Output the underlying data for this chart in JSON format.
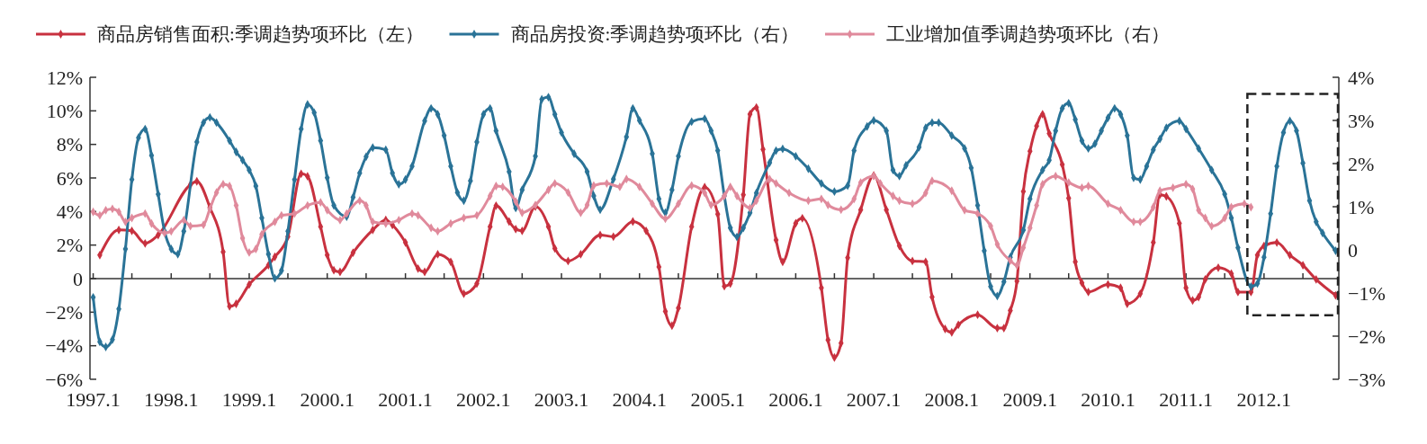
{
  "chart_data": {
    "type": "line",
    "legend": "top",
    "marker": "diamond",
    "xlim": [
      "1996-12-17",
      "2012-12-16"
    ],
    "xticks": [
      {
        "value": "1997-01",
        "label": "1997.1"
      },
      {
        "value": "1997-07",
        "label": null
      },
      {
        "value": "1998-01",
        "label": "1998.1"
      },
      {
        "value": "1998-07",
        "label": null
      },
      {
        "value": "1999-01",
        "label": "1999.1"
      },
      {
        "value": "1999-07",
        "label": null
      },
      {
        "value": "2000-01",
        "label": "2000.1"
      },
      {
        "value": "2000-07",
        "label": null
      },
      {
        "value": "2001-01",
        "label": "2001.1"
      },
      {
        "value": "2001-07",
        "label": null
      },
      {
        "value": "2002-01",
        "label": "2002.1"
      },
      {
        "value": "2002-07",
        "label": null
      },
      {
        "value": "2003-01",
        "label": "2003.1"
      },
      {
        "value": "2003-07",
        "label": null
      },
      {
        "value": "2004-01",
        "label": "2004.1"
      },
      {
        "value": "2004-07",
        "label": null
      },
      {
        "value": "2005-01",
        "label": "2005.1"
      },
      {
        "value": "2005-07",
        "label": null
      },
      {
        "value": "2006-01",
        "label": "2006.1"
      },
      {
        "value": "2006-07",
        "label": null
      },
      {
        "value": "2007-01",
        "label": "2007.1"
      },
      {
        "value": "2007-07",
        "label": null
      },
      {
        "value": "2008-01",
        "label": "2008.1"
      },
      {
        "value": "2008-07",
        "label": null
      },
      {
        "value": "2009-01",
        "label": "2009.1"
      },
      {
        "value": "2009-07",
        "label": null
      },
      {
        "value": "2010-01",
        "label": "2010.1"
      },
      {
        "value": "2010-07",
        "label": null
      },
      {
        "value": "2011-01",
        "label": "2011.1"
      },
      {
        "value": "2011-07",
        "label": null
      },
      {
        "value": "2012-01",
        "label": "2012.1"
      },
      {
        "value": "2012-07",
        "label": null
      }
    ],
    "ylim": [
      -6,
      12
    ],
    "yticks": [
      {
        "value": -6,
        "label": "−6%"
      },
      {
        "value": -4,
        "label": "−4%"
      },
      {
        "value": -2,
        "label": "−2%"
      },
      0,
      {
        "value": 2,
        "label": "2%"
      },
      {
        "value": 4,
        "label": "4%"
      },
      {
        "value": 6,
        "label": "6%"
      },
      {
        "value": 8,
        "label": "8%"
      },
      {
        "value": 10,
        "label": "10%"
      },
      {
        "value": 12,
        "label": "12%"
      }
    ],
    "y2lim": [
      -3,
      4
    ],
    "y2ticks": [
      {
        "value": -3,
        "label": "−3%"
      },
      {
        "value": -2,
        "label": "−2%"
      },
      {
        "value": -1,
        "label": "−1%"
      },
      0,
      {
        "value": 1,
        "label": "1%"
      },
      {
        "value": 2,
        "label": "2%"
      },
      {
        "value": 3,
        "label": "3%"
      },
      {
        "value": 4,
        "label": "4%"
      }
    ],
    "series": [
      {
        "name": "商品房销售面积:季调趋势项环比（左）",
        "color": "#c8313f",
        "x": [
          "1997-02",
          "1997-05",
          "1997-07",
          "1997-09",
          "1997-11",
          "1998-04",
          "1998-05",
          "1998-07",
          "1998-09",
          "1998-10",
          "1998-11",
          "1999-01",
          "1999-04",
          "1999-05",
          "1999-07",
          "1999-09",
          "1999-10",
          "1999-12",
          "2000-01",
          "2000-02",
          "2000-03",
          "2000-05",
          "2000-08",
          "2000-10",
          "2000-11",
          "2001-01",
          "2001-03",
          "2001-04",
          "2001-06",
          "2001-08",
          "2001-10",
          "2001-12",
          "2002-02",
          "2002-03",
          "2002-05",
          "2002-06",
          "2002-07",
          "2002-09",
          "2002-11",
          "2002-12",
          "2003-02",
          "2003-04",
          "2003-07",
          "2003-09",
          "2003-12",
          "2004-02",
          "2004-04",
          "2004-05",
          "2004-06",
          "2004-07",
          "2004-09",
          "2004-11",
          "2005-01",
          "2005-02",
          "2005-03",
          "2005-05",
          "2005-06",
          "2005-07",
          "2005-08",
          "2005-10",
          "2005-11",
          "2006-01",
          "2006-02",
          "2006-05",
          "2006-06",
          "2006-07",
          "2006-08",
          "2006-09",
          "2006-11",
          "2007-01",
          "2007-03",
          "2007-05",
          "2007-07",
          "2007-09",
          "2007-10",
          "2007-12",
          "2008-01",
          "2008-02",
          "2008-05",
          "2008-08",
          "2008-09",
          "2008-10",
          "2008-11",
          "2008-12",
          "2009-01",
          "2009-02",
          "2009-03",
          "2009-04",
          "2009-06",
          "2009-07",
          "2009-08",
          "2009-09",
          "2009-10",
          "2010-01",
          "2010-03",
          "2010-04",
          "2010-06",
          "2010-08",
          "2010-09",
          "2010-10",
          "2010-12",
          "2011-01",
          "2011-02",
          "2011-03",
          "2011-04",
          "2011-06",
          "2011-08",
          "2011-09",
          "2011-11",
          "2011-12",
          "2012-01",
          "2012-03",
          "2012-05",
          "2012-07",
          "2012-09",
          "2012-12"
        ],
        "values": [
          1.4,
          2.9,
          2.85,
          2.1,
          2.6,
          5.6,
          5.8,
          4.25,
          1.6,
          -1.65,
          -1.5,
          -0.35,
          0.8,
          1.3,
          2.5,
          6.25,
          6.1,
          3.1,
          1.4,
          0.5,
          0.4,
          1.55,
          2.9,
          3.5,
          3.2,
          2.15,
          0.6,
          0.4,
          1.45,
          1.0,
          -0.9,
          -0.3,
          3.1,
          4.35,
          3.4,
          2.95,
          2.85,
          4.3,
          3.1,
          1.8,
          1.05,
          1.45,
          2.6,
          2.5,
          3.4,
          2.85,
          0.7,
          -1.95,
          -2.8,
          -1.75,
          3.1,
          5.45,
          3.85,
          -0.45,
          -0.3,
          5.0,
          9.8,
          10.2,
          7.7,
          2.3,
          1.0,
          3.3,
          3.6,
          -0.55,
          -3.65,
          -4.7,
          -3.85,
          1.25,
          4.1,
          6.15,
          4.1,
          1.95,
          1.05,
          1.0,
          -1.1,
          -3.0,
          -3.2,
          -2.75,
          -2.15,
          -2.95,
          -2.95,
          -1.9,
          -0.15,
          5.2,
          7.6,
          9.1,
          9.8,
          8.65,
          6.8,
          4.8,
          1.0,
          -0.25,
          -0.8,
          -0.35,
          -0.55,
          -1.5,
          -0.9,
          2.15,
          5.0,
          4.9,
          3.3,
          -0.55,
          -1.3,
          -1.1,
          -0.05,
          0.65,
          0.3,
          -0.8,
          -0.8,
          1.4,
          1.95,
          2.15,
          1.4,
          0.8,
          -0.05,
          -1.0
        ]
      },
      {
        "name": "商品房投资:季调趋势项环比（右）",
        "color": "#2a7397",
        "axis": "y2",
        "x": [
          "1997-01",
          "1997-02",
          "1997-03",
          "1997-04",
          "1997-05",
          "1997-06",
          "1997-07",
          "1997-08",
          "1997-09",
          "1997-10",
          "1997-11",
          "1997-12",
          "1998-01",
          "1998-02",
          "1998-03",
          "1998-05",
          "1998-06",
          "1998-07",
          "1998-08",
          "1998-10",
          "1998-11",
          "1998-12",
          "1999-01",
          "1999-02",
          "1999-03",
          "1999-04",
          "1999-05",
          "1999-06",
          "1999-07",
          "1999-08",
          "1999-09",
          "1999-10",
          "1999-11",
          "1999-12",
          "2000-01",
          "2000-02",
          "2000-04",
          "2000-05",
          "2000-06",
          "2000-07",
          "2000-08",
          "2000-10",
          "2000-11",
          "2000-12",
          "2001-01",
          "2001-02",
          "2001-04",
          "2001-05",
          "2001-06",
          "2001-07",
          "2001-08",
          "2001-09",
          "2001-10",
          "2001-11",
          "2001-12",
          "2002-01",
          "2002-02",
          "2002-03",
          "2002-05",
          "2002-06",
          "2002-07",
          "2002-09",
          "2002-10",
          "2002-11",
          "2002-12",
          "2003-01",
          "2003-03",
          "2003-05",
          "2003-06",
          "2003-07",
          "2003-09",
          "2003-11",
          "2003-12",
          "2004-01",
          "2004-03",
          "2004-04",
          "2004-05",
          "2004-06",
          "2004-07",
          "2004-09",
          "2004-11",
          "2004-12",
          "2005-01",
          "2005-02",
          "2005-03",
          "2005-04",
          "2005-05",
          "2005-06",
          "2005-07",
          "2005-09",
          "2005-10",
          "2005-11",
          "2006-01",
          "2006-03",
          "2006-05",
          "2006-07",
          "2006-09",
          "2006-10",
          "2006-12",
          "2007-01",
          "2007-03",
          "2007-04",
          "2007-05",
          "2007-06",
          "2007-08",
          "2007-09",
          "2007-10",
          "2007-11",
          "2008-01",
          "2008-03",
          "2008-04",
          "2008-05",
          "2008-06",
          "2008-07",
          "2008-08",
          "2008-09",
          "2008-10",
          "2008-12",
          "2009-01",
          "2009-03",
          "2009-04",
          "2009-05",
          "2009-06",
          "2009-07",
          "2009-08",
          "2009-09",
          "2009-10",
          "2009-11",
          "2009-12",
          "2010-01",
          "2010-02",
          "2010-03",
          "2010-04",
          "2010-05",
          "2010-06",
          "2010-07",
          "2010-08",
          "2010-09",
          "2010-10",
          "2010-12",
          "2011-01",
          "2011-03",
          "2011-05",
          "2011-07",
          "2011-08",
          "2011-09",
          "2011-11",
          "2011-12",
          "2012-01",
          "2012-02",
          "2012-03",
          "2012-04",
          "2012-05",
          "2012-06",
          "2012-07",
          "2012-08",
          "2012-09",
          "2012-10",
          "2012-12"
        ],
        "values": [
          -1.1,
          -2.13,
          -2.25,
          -2.08,
          -1.37,
          0.02,
          1.63,
          2.6,
          2.8,
          2.19,
          1.29,
          0.43,
          0.02,
          -0.1,
          0.43,
          2.5,
          2.95,
          3.07,
          2.95,
          2.53,
          2.27,
          2.08,
          1.85,
          1.48,
          0.74,
          -0.1,
          -0.66,
          -0.48,
          0.43,
          1.63,
          2.8,
          3.37,
          3.18,
          2.53,
          1.67,
          1.03,
          0.77,
          1.22,
          1.78,
          2.16,
          2.37,
          2.32,
          1.78,
          1.52,
          1.63,
          1.94,
          2.99,
          3.28,
          3.14,
          2.65,
          1.94,
          1.33,
          1.14,
          1.6,
          2.5,
          3.14,
          3.28,
          2.76,
          1.81,
          0.97,
          1.39,
          2.17,
          3.49,
          3.54,
          3.14,
          2.72,
          2.23,
          1.81,
          1.25,
          0.93,
          1.64,
          2.62,
          3.28,
          3.0,
          2.23,
          1.18,
          0.86,
          1.39,
          2.17,
          2.97,
          3.04,
          2.76,
          2.3,
          1.25,
          0.51,
          0.3,
          0.51,
          0.86,
          1.32,
          2.02,
          2.3,
          2.34,
          2.17,
          1.88,
          1.54,
          1.35,
          1.49,
          2.3,
          2.86,
          3.0,
          2.76,
          1.85,
          1.71,
          1.96,
          2.38,
          2.83,
          2.95,
          2.95,
          2.65,
          2.35,
          1.9,
          1.03,
          -0.02,
          -0.85,
          -1.07,
          -0.74,
          -0.17,
          0.46,
          1.18,
          1.85,
          2.08,
          2.76,
          3.28,
          3.4,
          3.02,
          2.53,
          2.35,
          2.46,
          2.76,
          3.06,
          3.28,
          3.14,
          2.65,
          1.67,
          1.63,
          1.94,
          2.32,
          2.57,
          2.83,
          2.99,
          2.8,
          2.35,
          1.85,
          1.29,
          0.74,
          0.05,
          -0.85,
          -0.78,
          -0.17,
          0.84,
          1.94,
          2.72,
          2.99,
          2.76,
          2.01,
          1.14,
          0.65,
          0.39,
          -0.02
        ]
      },
      {
        "name": "工业增加值季调趋势项环比（右）",
        "color": "#e08a9c",
        "axis": "y2",
        "x": [
          "1997-01",
          "1997-02",
          "1997-03",
          "1997-04",
          "1997-05",
          "1997-06",
          "1997-07",
          "1997-09",
          "1997-10",
          "1997-12",
          "1998-01",
          "1998-03",
          "1998-04",
          "1998-06",
          "1998-07",
          "1998-08",
          "1998-09",
          "1998-10",
          "1998-11",
          "1998-12",
          "1999-01",
          "1999-02",
          "1999-03",
          "1999-05",
          "1999-06",
          "1999-08",
          "1999-10",
          "1999-12",
          "2000-01",
          "2000-03",
          "2000-04",
          "2000-06",
          "2000-07",
          "2000-08",
          "2000-10",
          "2000-12",
          "2001-02",
          "2001-03",
          "2001-05",
          "2001-06",
          "2001-08",
          "2001-10",
          "2001-12",
          "2002-02",
          "2002-03",
          "2002-04",
          "2002-06",
          "2002-07",
          "2002-09",
          "2002-11",
          "2002-12",
          "2003-02",
          "2003-04",
          "2003-05",
          "2003-06",
          "2003-08",
          "2003-10",
          "2003-11",
          "2004-01",
          "2004-03",
          "2004-05",
          "2004-07",
          "2004-09",
          "2004-11",
          "2004-12",
          "2005-02",
          "2005-03",
          "2005-04",
          "2005-06",
          "2005-07",
          "2005-09",
          "2005-10",
          "2005-12",
          "2006-03",
          "2006-05",
          "2006-06",
          "2006-08",
          "2006-10",
          "2006-11",
          "2007-01",
          "2007-02",
          "2007-04",
          "2007-05",
          "2007-07",
          "2007-09",
          "2007-10",
          "2008-01",
          "2008-03",
          "2008-05",
          "2008-07",
          "2008-08",
          "2008-10",
          "2008-11",
          "2008-12",
          "2009-01",
          "2009-02",
          "2009-03",
          "2009-05",
          "2009-07",
          "2009-09",
          "2009-10",
          "2010-01",
          "2010-03",
          "2010-05",
          "2010-06",
          "2010-08",
          "2010-09",
          "2010-11",
          "2011-01",
          "2011-02",
          "2011-03",
          "2011-04",
          "2011-05",
          "2011-07",
          "2011-08",
          "2011-10",
          "2011-11"
        ],
        "values": [
          0.88,
          0.8,
          0.92,
          0.95,
          0.88,
          0.65,
          0.74,
          0.84,
          0.61,
          0.39,
          0.43,
          0.69,
          0.55,
          0.58,
          0.95,
          1.33,
          1.52,
          1.48,
          1.03,
          0.27,
          -0.06,
          0.02,
          0.36,
          0.65,
          0.8,
          0.84,
          1.03,
          1.1,
          0.92,
          0.69,
          0.84,
          1.14,
          1.03,
          0.65,
          0.61,
          0.69,
          0.84,
          0.8,
          0.51,
          0.43,
          0.61,
          0.74,
          0.8,
          1.25,
          1.48,
          1.46,
          1.12,
          0.86,
          1.04,
          1.39,
          1.54,
          1.33,
          0.86,
          1.04,
          1.49,
          1.54,
          1.46,
          1.64,
          1.46,
          1.07,
          0.72,
          1.07,
          1.49,
          1.32,
          1.04,
          1.25,
          1.46,
          1.25,
          0.97,
          1.14,
          1.64,
          1.54,
          1.32,
          1.14,
          1.18,
          1.04,
          0.93,
          1.18,
          1.56,
          1.71,
          1.54,
          1.25,
          1.14,
          1.07,
          1.32,
          1.6,
          1.37,
          0.92,
          0.84,
          0.55,
          0.13,
          -0.25,
          -0.36,
          0.05,
          0.51,
          1.03,
          1.52,
          1.71,
          1.56,
          1.44,
          1.48,
          1.07,
          0.92,
          0.65,
          0.65,
          0.99,
          1.37,
          1.44,
          1.52,
          1.41,
          0.92,
          0.74,
          0.55,
          0.74,
          0.99,
          1.07,
          0.99
        ]
      }
    ]
  }
}
